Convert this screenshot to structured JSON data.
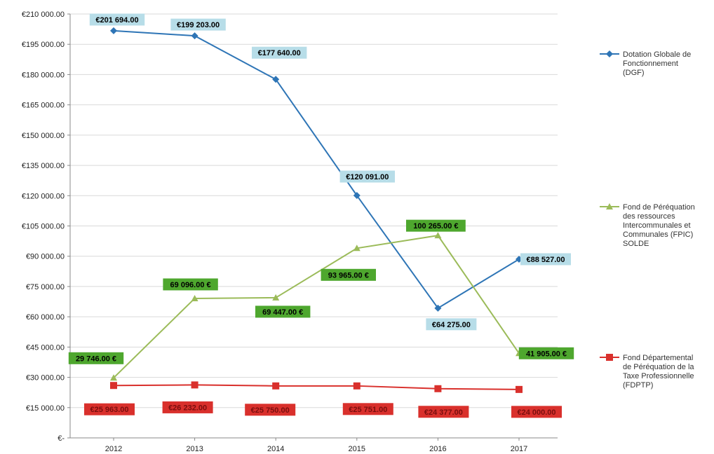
{
  "chart_data": {
    "type": "line",
    "categories": [
      "2012",
      "2013",
      "2014",
      "2015",
      "2016",
      "2017"
    ],
    "ylim": [
      0,
      210000
    ],
    "y_ticks": [
      {
        "value": 0,
        "label": "€-"
      },
      {
        "value": 15000,
        "label": "€15 000.00"
      },
      {
        "value": 30000,
        "label": "€30 000.00"
      },
      {
        "value": 45000,
        "label": "€45 000.00"
      },
      {
        "value": 60000,
        "label": "€60 000.00"
      },
      {
        "value": 75000,
        "label": "€75 000.00"
      },
      {
        "value": 90000,
        "label": "€90 000.00"
      },
      {
        "value": 105000,
        "label": "€105 000.00"
      },
      {
        "value": 120000,
        "label": "€120 000.00"
      },
      {
        "value": 135000,
        "label": "€135 000.00"
      },
      {
        "value": 150000,
        "label": "€150 000.00"
      },
      {
        "value": 165000,
        "label": "€165 000.00"
      },
      {
        "value": 180000,
        "label": "€180 000.00"
      },
      {
        "value": 195000,
        "label": "€195 000.00"
      },
      {
        "value": 210000,
        "label": "€210 000.00"
      }
    ],
    "grid": true,
    "legend_position": "right",
    "series": [
      {
        "name": "Dotation Globale de Fonctionnement (DGF)",
        "legend_lines": [
          "Dotation Globale de",
          "Fonctionnement",
          "(DGF)"
        ],
        "color": "#2e75b6",
        "label_bg": "#b7dde8",
        "label_fg": "#000000",
        "marker": "diamond",
        "values": [
          201694,
          199203,
          177640,
          120091,
          64275,
          88527
        ],
        "labels": [
          "€201 694.00",
          "€199 203.00",
          "€177 640.00",
          "€120 091.00",
          "€64 275.00",
          "€88 527.00"
        ]
      },
      {
        "name": "Fond de Péréquation des ressources Intercommunales et Communales (FPIC) SOLDE",
        "legend_lines": [
          "Fond de Péréquation",
          "des ressources",
          "Intercommunales et",
          "Communales (FPIC)",
          "SOLDE"
        ],
        "color": "#9bbb59",
        "label_bg": "#4ea72e",
        "label_fg": "#000000",
        "marker": "triangle",
        "values": [
          29746,
          69096,
          69447,
          93965,
          100265,
          41905
        ],
        "labels": [
          "29 746.00 €",
          "69 096.00 €",
          "69 447.00 €",
          "93 965.00 €",
          "100 265.00 €",
          "41 905.00 €"
        ]
      },
      {
        "name": "Fond Départemental de Péréquation de la Taxe Professionnelle (FDPTP)",
        "legend_lines": [
          "Fond Départemental",
          "de Péréquation de la",
          "Taxe Professionnelle",
          "(FDPTP)"
        ],
        "color": "#d9302c",
        "label_bg": "#d9302c",
        "label_fg": "#7a0e0e",
        "marker": "square",
        "values": [
          25963,
          26232,
          25750,
          25751,
          24377,
          24000
        ],
        "labels": [
          "€25 963.00",
          "€26 232.00",
          "€25 750.00",
          "€25 751.00",
          "€24 377.00",
          "€24 000.00"
        ]
      }
    ]
  }
}
